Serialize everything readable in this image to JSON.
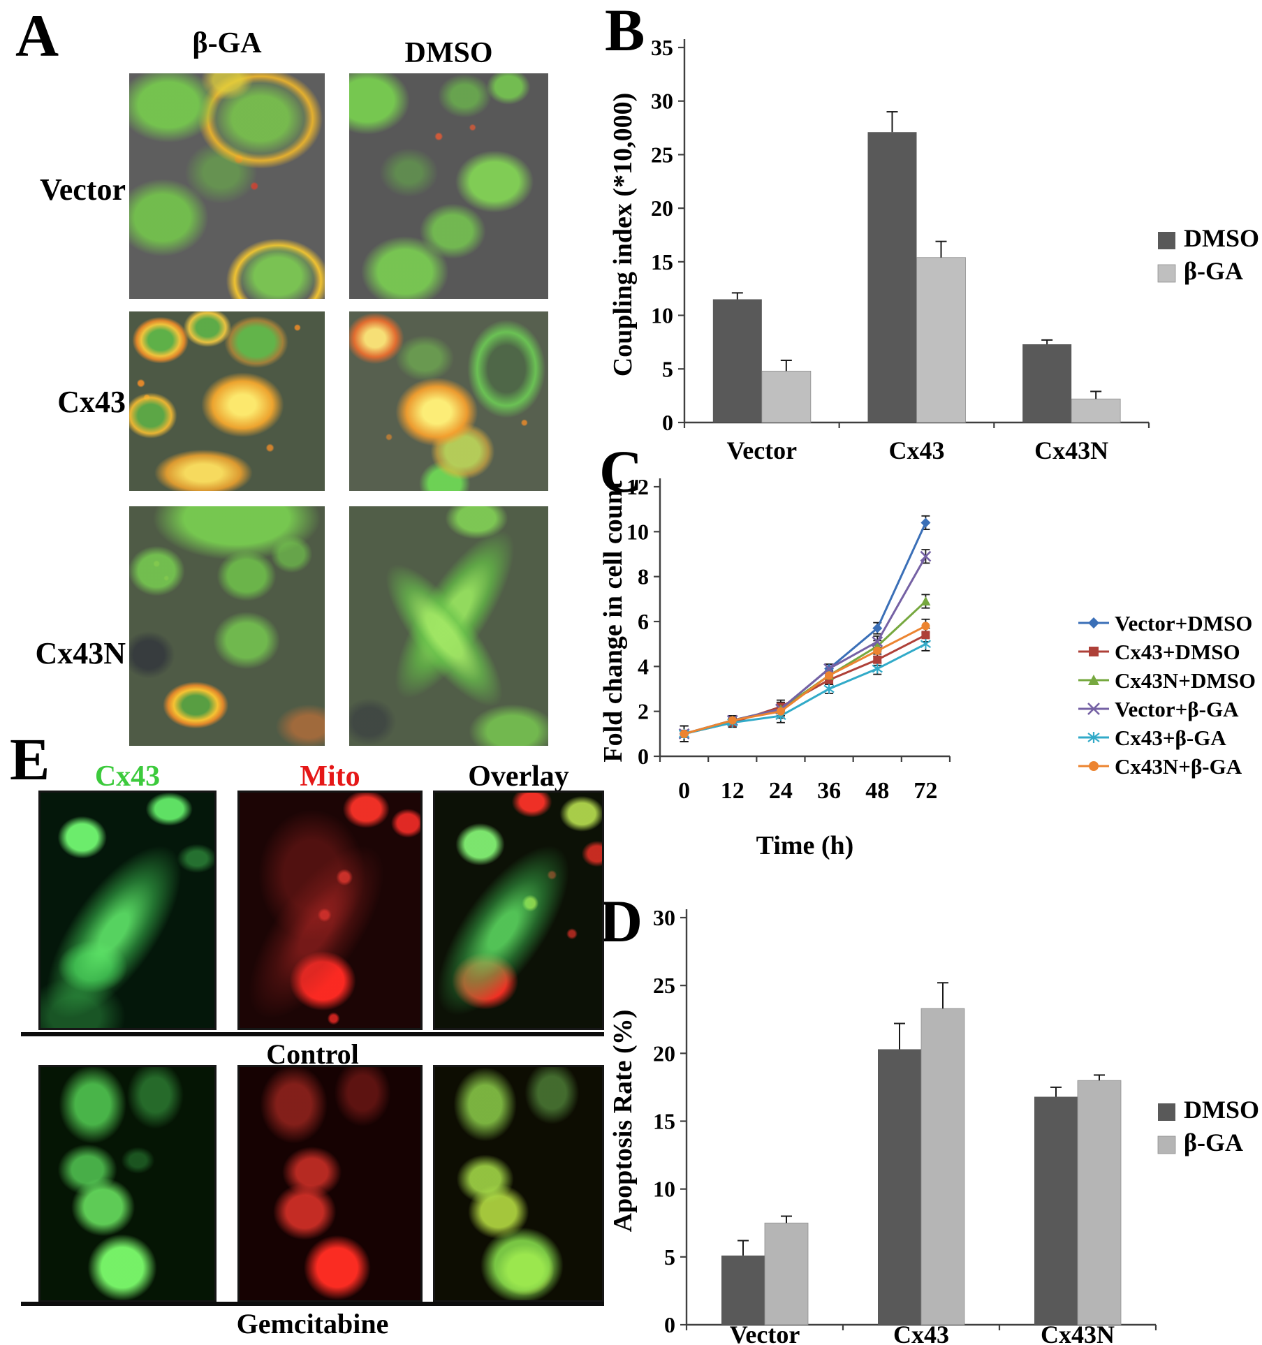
{
  "figure": {
    "panel_a": {
      "label": "A",
      "col_headers": [
        "β-GA",
        "DMSO"
      ],
      "row_labels": [
        "Vector",
        "Cx43",
        "Cx43N"
      ]
    },
    "panel_b": {
      "label": "B"
    },
    "panel_c": {
      "label": "C"
    },
    "panel_d": {
      "label": "D"
    },
    "panel_e": {
      "label": "E",
      "col_headers": [
        "Cx43",
        "Mito",
        "Overlay"
      ],
      "col_header_colors": [
        "#3cca3c",
        "#e51717",
        "#000000"
      ],
      "row_captions": [
        "Control",
        "Gemcitabine"
      ]
    }
  },
  "chart_data": [
    {
      "id": "chart-b",
      "type": "bar",
      "title": "",
      "xlabel": "",
      "ylabel": "Coupling index (*10,000)",
      "categories": [
        "Vector",
        "Cx43",
        "Cx43N"
      ],
      "series": [
        {
          "name": "DMSO",
          "color": "#595959",
          "values": [
            11.5,
            27.1,
            7.3
          ],
          "errors": [
            0.6,
            1.9,
            0.4
          ]
        },
        {
          "name": "β-GA",
          "color": "#bfbfbf",
          "values": [
            4.8,
            15.4,
            2.2
          ],
          "errors": [
            1.0,
            1.5,
            0.7
          ]
        }
      ],
      "ylim": [
        0,
        35
      ],
      "yticks": [
        0,
        5,
        10,
        15,
        20,
        25,
        30,
        35
      ],
      "legend_position": "right",
      "grid": false
    },
    {
      "id": "chart-c",
      "type": "line",
      "title": "",
      "xlabel": "Time (h)",
      "ylabel": "Fold change in cell count",
      "x": [
        0,
        12,
        24,
        36,
        48,
        72
      ],
      "error_y": [
        0.35,
        0.2,
        0.3,
        0.2,
        0.25,
        0.3
      ],
      "series": [
        {
          "name": "Vector+DMSO",
          "color": "#3A6FB7",
          "marker": "diamond",
          "values": [
            1.0,
            1.6,
            2.1,
            3.9,
            5.7,
            10.4
          ]
        },
        {
          "name": "Cx43+DMSO",
          "color": "#AE4038",
          "marker": "square",
          "values": [
            1.0,
            1.5,
            2.2,
            3.4,
            4.3,
            5.4
          ]
        },
        {
          "name": "Cx43N+DMSO",
          "color": "#76A83F",
          "marker": "triangle",
          "values": [
            1.0,
            1.6,
            2.1,
            3.6,
            4.9,
            6.9
          ]
        },
        {
          "name": "Vector+β-GA",
          "color": "#7561A4",
          "marker": "x",
          "values": [
            1.0,
            1.6,
            2.1,
            3.9,
            5.1,
            8.9
          ]
        },
        {
          "name": "Cx43+β-GA",
          "color": "#31AAC8",
          "marker": "asterisk",
          "values": [
            1.0,
            1.5,
            1.8,
            3.0,
            3.9,
            5.0
          ]
        },
        {
          "name": "Cx43N+β-GA",
          "color": "#EC8430",
          "marker": "circle",
          "values": [
            1.0,
            1.6,
            2.0,
            3.6,
            4.7,
            5.8
          ]
        }
      ],
      "ylim": [
        0,
        12
      ],
      "yticks": [
        0,
        2,
        4,
        6,
        8,
        10,
        12
      ],
      "legend_position": "right",
      "grid": false
    },
    {
      "id": "chart-d",
      "type": "bar",
      "title": "",
      "xlabel": "",
      "ylabel": "Apoptosis Rate (%)",
      "categories": [
        "Vector",
        "Cx43",
        "Cx43N"
      ],
      "series": [
        {
          "name": "DMSO",
          "color": "#595959",
          "values": [
            5.1,
            20.3,
            16.8
          ],
          "errors": [
            1.1,
            1.9,
            0.7
          ]
        },
        {
          "name": "β-GA",
          "color": "#b5b5b5",
          "values": [
            7.5,
            23.3,
            18.0
          ],
          "errors": [
            0.5,
            1.9,
            0.4
          ]
        }
      ],
      "ylim": [
        0,
        30
      ],
      "yticks": [
        0,
        5,
        10,
        15,
        20,
        25,
        30
      ],
      "legend_position": "right",
      "grid": false
    }
  ]
}
